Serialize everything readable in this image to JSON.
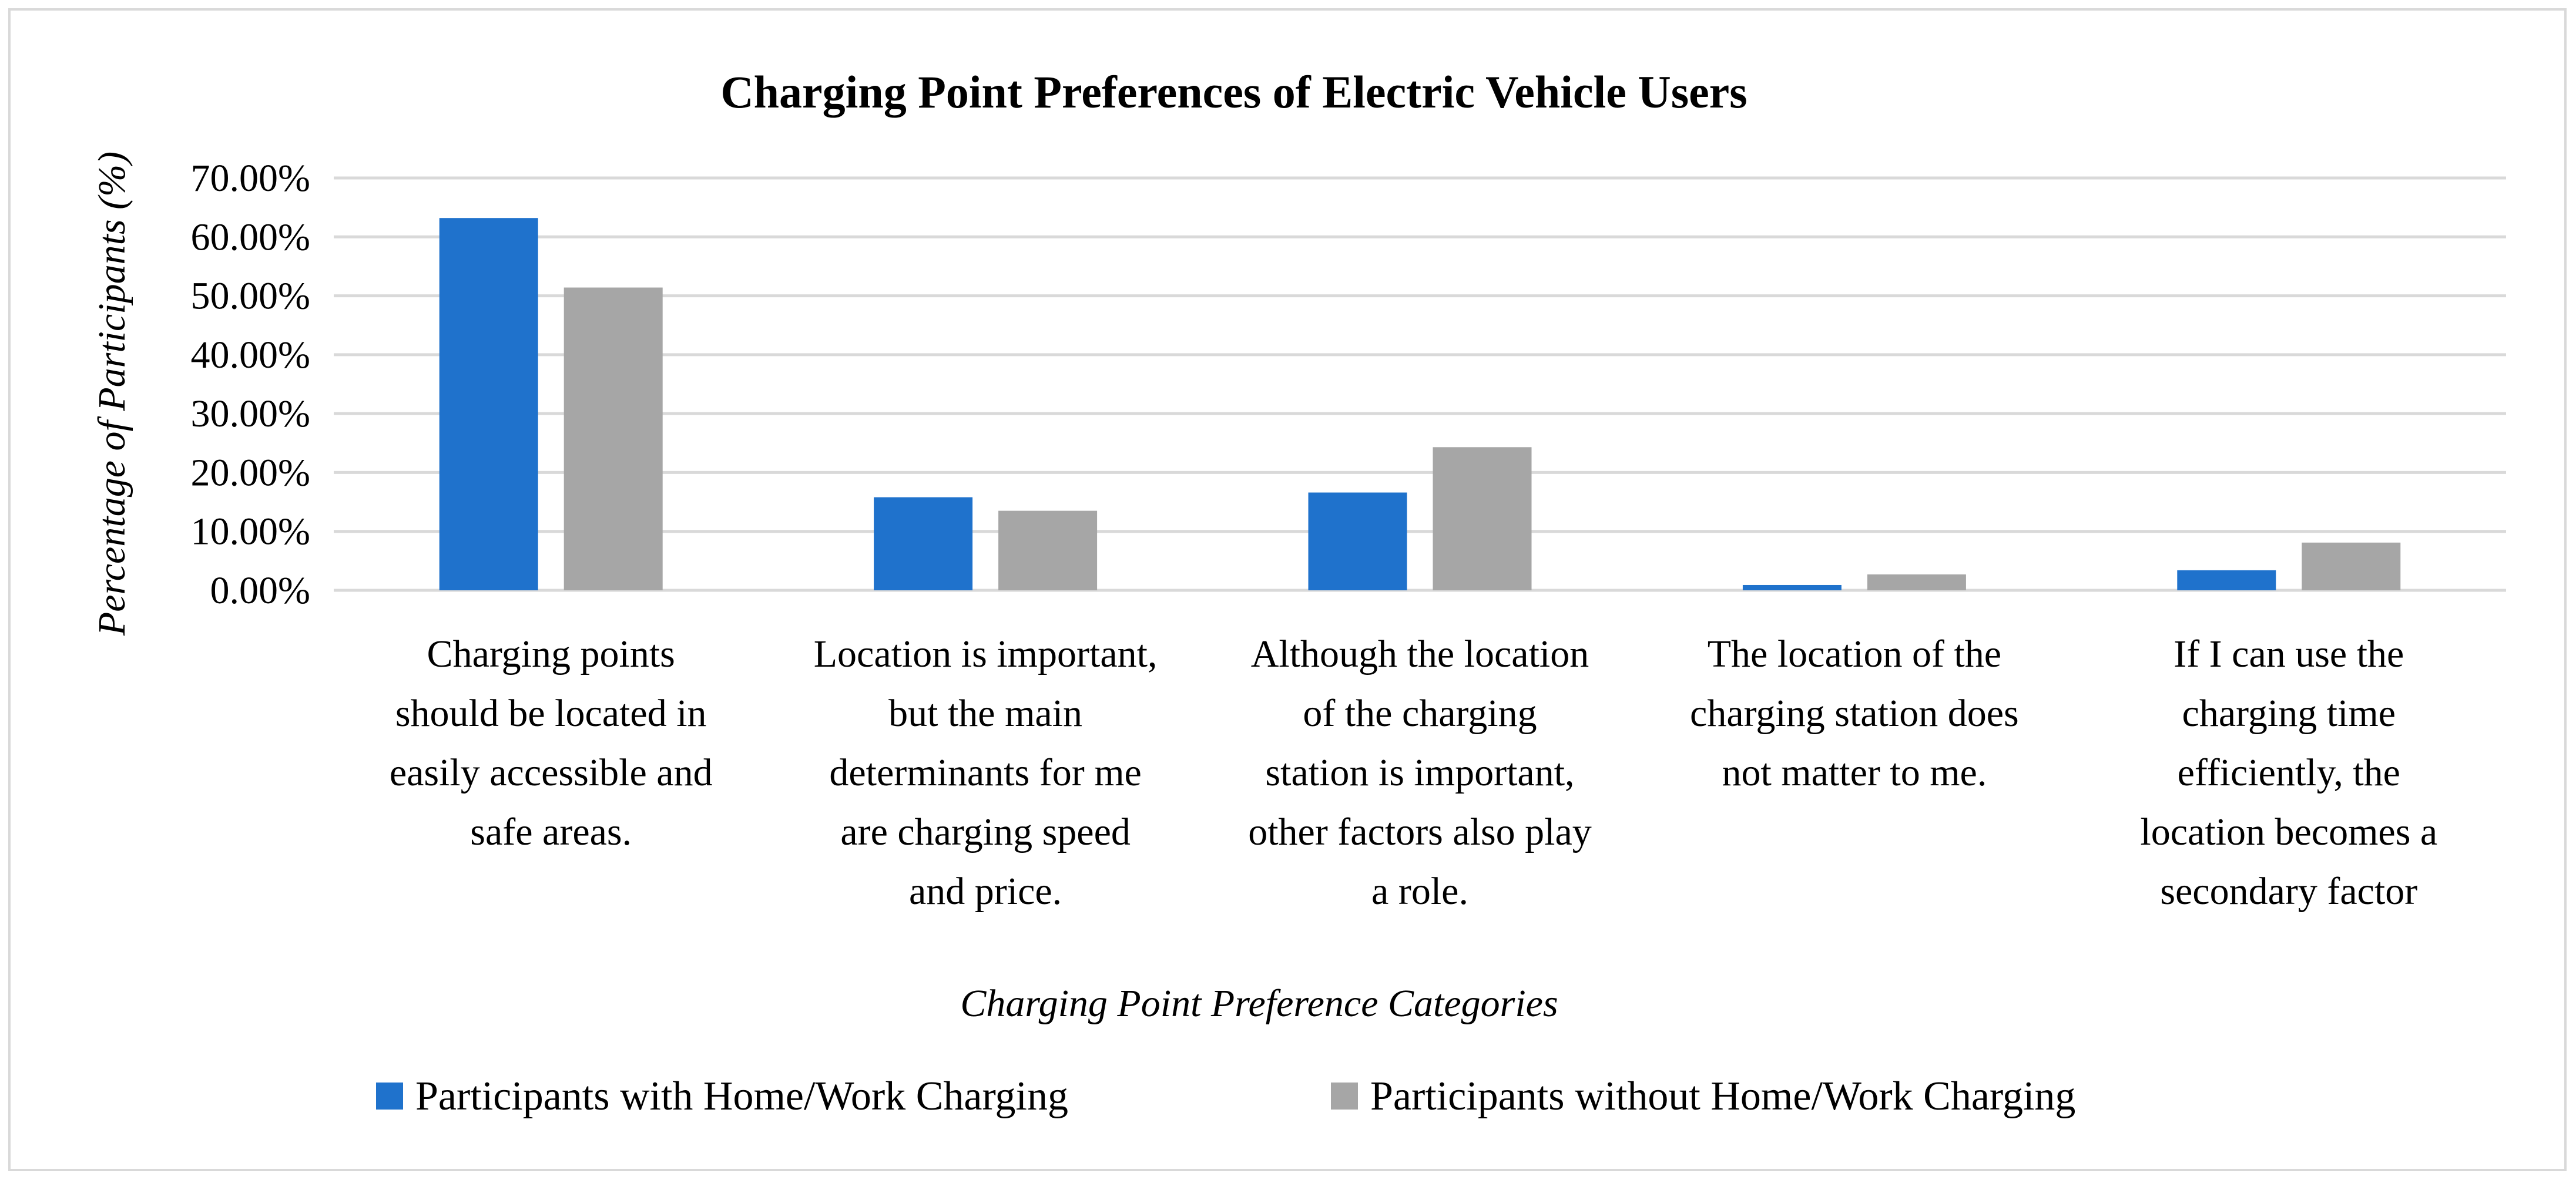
{
  "chart_data": {
    "type": "bar",
    "title": "Charging Point Preferences of Electric Vehicle Users",
    "xlabel": "Charging Point Preference Categories",
    "ylabel": "Percentage of Participants (%)",
    "ylim": [
      0,
      70
    ],
    "y_ticks": [
      "0.00%",
      "10.00%",
      "20.00%",
      "30.00%",
      "40.00%",
      "50.00%",
      "60.00%",
      "70.00%"
    ],
    "grid": true,
    "legend_position": "bottom",
    "categories": [
      [
        "Charging points",
        "should be located in",
        "easily accessible and",
        "safe areas."
      ],
      [
        "Location is important,",
        "but the main",
        "determinants for me",
        "are charging speed",
        "and price."
      ],
      [
        "Although the location",
        "of the charging",
        "station is important,",
        "other factors also play",
        "a role."
      ],
      [
        "The location of the",
        "charging station does",
        "not matter to me."
      ],
      [
        "If I can use the",
        "charging time",
        "efficiently, the",
        "location becomes a",
        "secondary factor"
      ]
    ],
    "series": [
      {
        "name": "Participants with Home/Work Charging",
        "color": "#1f72cc",
        "values": [
          63.2,
          15.8,
          16.6,
          0.9,
          3.4
        ]
      },
      {
        "name": "Participants without Home/Work Charging",
        "color": "#a6a6a6",
        "values": [
          51.4,
          13.5,
          24.3,
          2.7,
          8.1
        ]
      }
    ]
  }
}
